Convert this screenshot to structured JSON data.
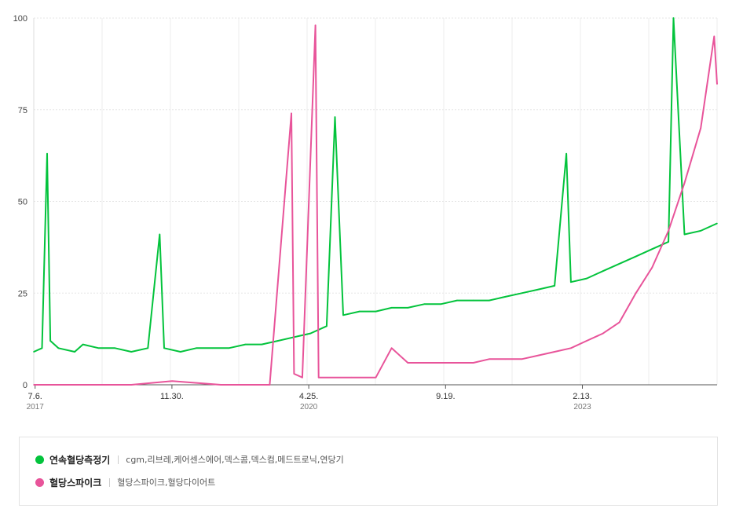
{
  "chart_data": {
    "type": "line",
    "ylim": [
      0,
      100
    ],
    "yticks": [
      "0",
      "25",
      "50",
      "75",
      "100"
    ],
    "x_range": [
      "2017-07-01",
      "2024-07-01"
    ],
    "xticks": [
      {
        "label": "7.6.",
        "sub": "2017",
        "date": "2017-07-06"
      },
      {
        "label": "11.30.",
        "sub": "",
        "date": "2018-11-30"
      },
      {
        "label": "4.25.",
        "sub": "2020",
        "date": "2020-04-25"
      },
      {
        "label": "9.19.",
        "sub": "",
        "date": "2021-09-19"
      },
      {
        "label": "2.13.",
        "sub": "2023",
        "date": "2023-02-13"
      }
    ],
    "grid": true,
    "series": [
      {
        "name": "연속혈당측정기",
        "color": "#03c33c",
        "points": [
          [
            "2017-07-01",
            9
          ],
          [
            "2017-08-01",
            10
          ],
          [
            "2017-08-20",
            63
          ],
          [
            "2017-09-01",
            12
          ],
          [
            "2017-10-01",
            10
          ],
          [
            "2017-12-01",
            9
          ],
          [
            "2018-01-01",
            11
          ],
          [
            "2018-03-01",
            10
          ],
          [
            "2018-05-01",
            10
          ],
          [
            "2018-07-01",
            9
          ],
          [
            "2018-09-01",
            10
          ],
          [
            "2018-10-15",
            41
          ],
          [
            "2018-11-01",
            10
          ],
          [
            "2019-01-01",
            9
          ],
          [
            "2019-03-01",
            10
          ],
          [
            "2019-05-01",
            10
          ],
          [
            "2019-07-01",
            10
          ],
          [
            "2019-09-01",
            11
          ],
          [
            "2019-11-01",
            11
          ],
          [
            "2020-01-01",
            12
          ],
          [
            "2020-03-01",
            13
          ],
          [
            "2020-05-01",
            14
          ],
          [
            "2020-07-01",
            16
          ],
          [
            "2020-08-01",
            73
          ],
          [
            "2020-09-01",
            19
          ],
          [
            "2020-11-01",
            20
          ],
          [
            "2021-01-01",
            20
          ],
          [
            "2021-03-01",
            21
          ],
          [
            "2021-05-01",
            21
          ],
          [
            "2021-07-01",
            22
          ],
          [
            "2021-09-01",
            22
          ],
          [
            "2021-11-01",
            23
          ],
          [
            "2022-01-01",
            23
          ],
          [
            "2022-03-01",
            23
          ],
          [
            "2022-05-01",
            24
          ],
          [
            "2022-07-01",
            25
          ],
          [
            "2022-09-01",
            26
          ],
          [
            "2022-11-01",
            27
          ],
          [
            "2022-12-15",
            63
          ],
          [
            "2023-01-01",
            28
          ],
          [
            "2023-03-01",
            29
          ],
          [
            "2023-05-01",
            31
          ],
          [
            "2023-07-01",
            33
          ],
          [
            "2023-09-01",
            35
          ],
          [
            "2023-11-01",
            37
          ],
          [
            "2024-01-01",
            39
          ],
          [
            "2024-01-20",
            100
          ],
          [
            "2024-03-01",
            41
          ],
          [
            "2024-05-01",
            42
          ],
          [
            "2024-07-01",
            44
          ]
        ]
      },
      {
        "name": "혈당스파이크",
        "color": "#e8549a",
        "points": [
          [
            "2017-07-01",
            0
          ],
          [
            "2018-01-01",
            0
          ],
          [
            "2018-07-01",
            0
          ],
          [
            "2018-12-01",
            1
          ],
          [
            "2019-06-01",
            0
          ],
          [
            "2019-12-01",
            0
          ],
          [
            "2020-02-20",
            74
          ],
          [
            "2020-03-01",
            3
          ],
          [
            "2020-04-01",
            2
          ],
          [
            "2020-05-20",
            98
          ],
          [
            "2020-06-01",
            2
          ],
          [
            "2020-10-01",
            2
          ],
          [
            "2021-01-01",
            2
          ],
          [
            "2021-03-01",
            10
          ],
          [
            "2021-05-01",
            6
          ],
          [
            "2021-07-01",
            6
          ],
          [
            "2021-09-01",
            6
          ],
          [
            "2021-11-01",
            6
          ],
          [
            "2022-01-01",
            6
          ],
          [
            "2022-03-01",
            7
          ],
          [
            "2022-05-01",
            7
          ],
          [
            "2022-07-01",
            7
          ],
          [
            "2022-09-01",
            8
          ],
          [
            "2022-11-01",
            9
          ],
          [
            "2023-01-01",
            10
          ],
          [
            "2023-03-01",
            12
          ],
          [
            "2023-05-01",
            14
          ],
          [
            "2023-07-01",
            17
          ],
          [
            "2023-09-01",
            25
          ],
          [
            "2023-11-01",
            32
          ],
          [
            "2024-01-01",
            42
          ],
          [
            "2024-03-01",
            55
          ],
          [
            "2024-05-01",
            70
          ],
          [
            "2024-06-20",
            95
          ],
          [
            "2024-07-01",
            82
          ]
        ]
      }
    ]
  },
  "legend": {
    "items": [
      {
        "name": "연속혈당측정기",
        "color": "#03c33c",
        "terms": "cgm,리브레,케어센스에어,덱스콤,덱스컴,메드트로닉,연당기"
      },
      {
        "name": "혈당스파이크",
        "color": "#e8549a",
        "terms": "혈당스파이크,혈당다이어트"
      }
    ]
  }
}
